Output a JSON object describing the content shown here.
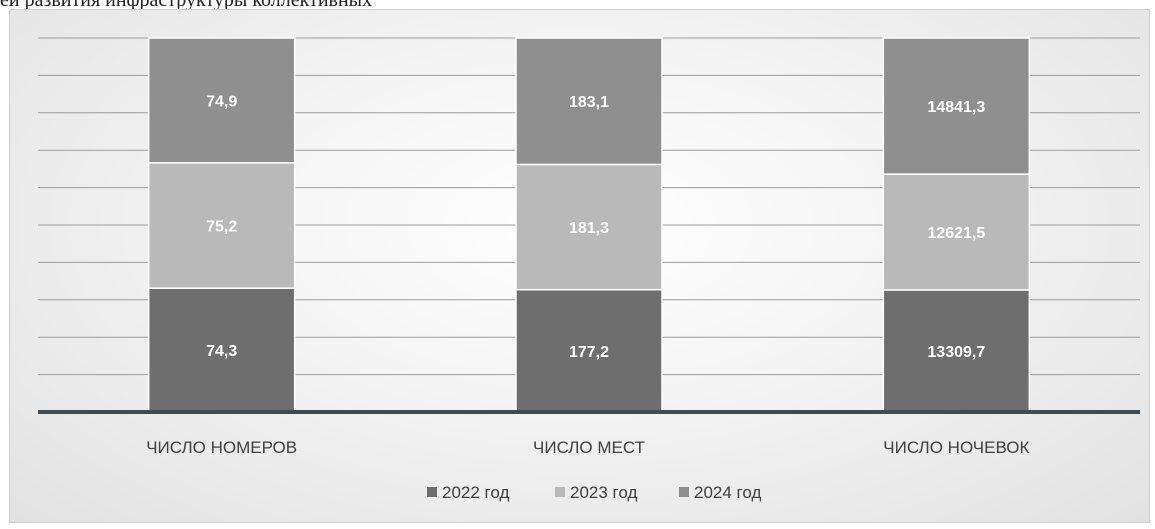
{
  "caption": "ей   развития   инфраструктуры   коллективных",
  "chart_data": {
    "type": "bar",
    "stacked": "percent",
    "categories": [
      "ЧИСЛО НОМЕРОВ",
      "ЧИСЛО МЕСТ",
      "ЧИСЛО НОЧЕВОК"
    ],
    "series": [
      {
        "name": "2022 год",
        "values": [
          74.3,
          177.2,
          13309.7
        ],
        "labels": [
          "74,3",
          "177,2",
          "13309,7"
        ],
        "color": "#6e6e6e"
      },
      {
        "name": "2023 год",
        "values": [
          75.2,
          181.3,
          12621.5
        ],
        "labels": [
          "75,2",
          "181,3",
          "12621,5"
        ],
        "color": "#b9b9b9"
      },
      {
        "name": "2024 год",
        "values": [
          74.9,
          183.1,
          14841.3
        ],
        "labels": [
          "74,9",
          "183,1",
          "14841,3"
        ],
        "color": "#8f8f8f"
      }
    ],
    "grid": true,
    "legend_position": "bottom"
  }
}
